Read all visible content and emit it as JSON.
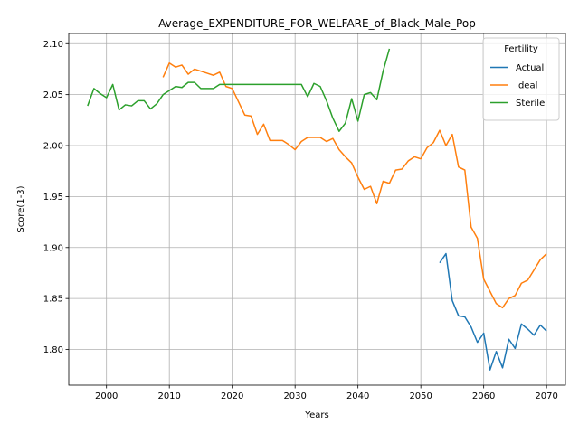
{
  "chart_data": {
    "type": "line",
    "title": "Average_EXPENDITURE_FOR_WELFARE_of_Black_Male_Pop",
    "xlabel": "Years",
    "ylabel": "Score(1-3)",
    "xlim": [
      1994,
      2073
    ],
    "ylim": [
      1.765,
      2.11
    ],
    "xticks": [
      2000,
      2010,
      2020,
      2030,
      2040,
      2050,
      2060,
      2070
    ],
    "yticks": [
      1.8,
      1.85,
      1.9,
      1.95,
      2.0,
      2.05,
      2.1
    ],
    "grid": true,
    "legend": {
      "title": "Fertility",
      "position": "top-right"
    },
    "series": [
      {
        "name": "Actual",
        "color": "#1f77b4",
        "points": [
          [
            2053,
            1.885
          ],
          [
            2054,
            1.894
          ],
          [
            2055,
            1.848
          ],
          [
            2056,
            1.833
          ],
          [
            2057,
            1.832
          ],
          [
            2058,
            1.822
          ],
          [
            2059,
            1.807
          ],
          [
            2060,
            1.816
          ],
          [
            2061,
            1.78
          ],
          [
            2062,
            1.798
          ],
          [
            2063,
            1.782
          ],
          [
            2064,
            1.81
          ],
          [
            2065,
            1.801
          ],
          [
            2066,
            1.825
          ],
          [
            2067,
            1.82
          ],
          [
            2068,
            1.814
          ],
          [
            2069,
            1.824
          ],
          [
            2070,
            1.818
          ]
        ]
      },
      {
        "name": "Ideal",
        "color": "#ff7f0e",
        "points": [
          [
            2009,
            2.067
          ],
          [
            2010,
            2.081
          ],
          [
            2011,
            2.077
          ],
          [
            2012,
            2.079
          ],
          [
            2013,
            2.07
          ],
          [
            2014,
            2.075
          ],
          [
            2015,
            2.073
          ],
          [
            2016,
            2.071
          ],
          [
            2017,
            2.069
          ],
          [
            2018,
            2.072
          ],
          [
            2019,
            2.058
          ],
          [
            2020,
            2.056
          ],
          [
            2021,
            2.043
          ],
          [
            2022,
            2.03
          ],
          [
            2023,
            2.029
          ],
          [
            2024,
            2.011
          ],
          [
            2025,
            2.021
          ],
          [
            2026,
            2.005
          ],
          [
            2027,
            2.005
          ],
          [
            2028,
            2.005
          ],
          [
            2029,
            2.001
          ],
          [
            2030,
            1.996
          ],
          [
            2031,
            2.004
          ],
          [
            2032,
            2.008
          ],
          [
            2033,
            2.008
          ],
          [
            2034,
            2.008
          ],
          [
            2035,
            2.004
          ],
          [
            2036,
            2.007
          ],
          [
            2037,
            1.996
          ],
          [
            2038,
            1.989
          ],
          [
            2039,
            1.983
          ],
          [
            2040,
            1.969
          ],
          [
            2041,
            1.957
          ],
          [
            2042,
            1.96
          ],
          [
            2043,
            1.943
          ],
          [
            2044,
            1.965
          ],
          [
            2045,
            1.963
          ],
          [
            2046,
            1.976
          ],
          [
            2047,
            1.977
          ],
          [
            2048,
            1.985
          ],
          [
            2049,
            1.989
          ],
          [
            2050,
            1.987
          ],
          [
            2051,
            1.998
          ],
          [
            2052,
            2.003
          ],
          [
            2053,
            2.015
          ],
          [
            2054,
            2.0
          ],
          [
            2055,
            2.011
          ],
          [
            2056,
            1.979
          ],
          [
            2057,
            1.976
          ],
          [
            2058,
            1.92
          ],
          [
            2059,
            1.909
          ],
          [
            2060,
            1.869
          ],
          [
            2061,
            1.857
          ],
          [
            2062,
            1.845
          ],
          [
            2063,
            1.841
          ],
          [
            2064,
            1.85
          ],
          [
            2065,
            1.853
          ],
          [
            2066,
            1.865
          ],
          [
            2067,
            1.868
          ],
          [
            2068,
            1.878
          ],
          [
            2069,
            1.888
          ],
          [
            2070,
            1.894
          ]
        ]
      },
      {
        "name": "Sterile",
        "color": "#2ca02c",
        "points": [
          [
            1997,
            2.039
          ],
          [
            1998,
            2.056
          ],
          [
            1999,
            2.051
          ],
          [
            2000,
            2.047
          ],
          [
            2001,
            2.06
          ],
          [
            2002,
            2.035
          ],
          [
            2003,
            2.04
          ],
          [
            2004,
            2.039
          ],
          [
            2005,
            2.044
          ],
          [
            2006,
            2.044
          ],
          [
            2007,
            2.036
          ],
          [
            2008,
            2.041
          ],
          [
            2009,
            2.05
          ],
          [
            2010,
            2.054
          ],
          [
            2011,
            2.058
          ],
          [
            2012,
            2.057
          ],
          [
            2013,
            2.062
          ],
          [
            2014,
            2.062
          ],
          [
            2015,
            2.056
          ],
          [
            2016,
            2.056
          ],
          [
            2017,
            2.056
          ],
          [
            2018,
            2.06
          ],
          [
            2019,
            2.06
          ],
          [
            2020,
            2.06
          ],
          [
            2021,
            2.06
          ],
          [
            2022,
            2.06
          ],
          [
            2023,
            2.06
          ],
          [
            2024,
            2.06
          ],
          [
            2025,
            2.06
          ],
          [
            2026,
            2.06
          ],
          [
            2027,
            2.06
          ],
          [
            2028,
            2.06
          ],
          [
            2029,
            2.06
          ],
          [
            2030,
            2.06
          ],
          [
            2031,
            2.06
          ],
          [
            2032,
            2.048
          ],
          [
            2033,
            2.061
          ],
          [
            2034,
            2.058
          ],
          [
            2035,
            2.044
          ],
          [
            2036,
            2.027
          ],
          [
            2037,
            2.014
          ],
          [
            2038,
            2.022
          ],
          [
            2039,
            2.046
          ],
          [
            2040,
            2.024
          ],
          [
            2041,
            2.05
          ],
          [
            2042,
            2.052
          ],
          [
            2043,
            2.045
          ],
          [
            2044,
            2.073
          ],
          [
            2045,
            2.095
          ]
        ]
      }
    ]
  }
}
